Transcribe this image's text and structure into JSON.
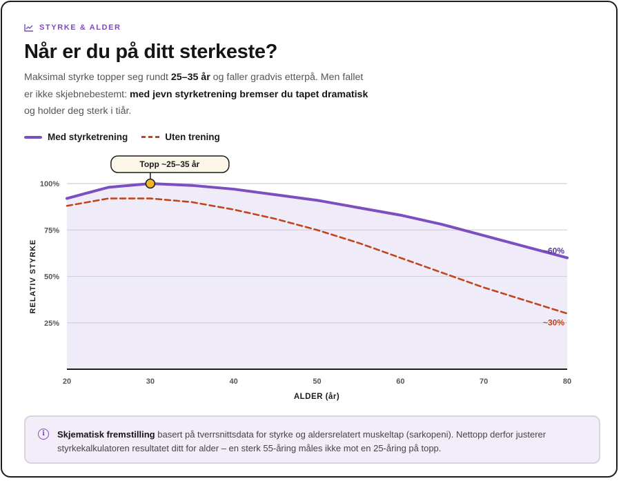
{
  "eyebrow": "STYRKE & ALDER",
  "title": "Når er du på ditt sterkeste?",
  "lede": {
    "p1": "Maksimal styrke topper seg rundt ",
    "b1": "25–35 år",
    "p2": " og faller gradvis etterpå. Men fallet er ikke skjebnebestemt: ",
    "b2": "med jevn styrketrening bremser du tapet dramatisk",
    "p3": " og holder deg sterk i tiår."
  },
  "legend": {
    "trained": "Med styrketrening",
    "untrained": "Uten trening"
  },
  "note": {
    "bold": "Skjematisk fremstilling",
    "text": " basert på tverrsnittsdata for styrke og aldersrelatert muskeltap (sarkopeni). Nettopp derfor justerer styrkekalkulatoren resultatet ditt for alder – en sterk 55-åring måles ikke mot en 25-åring på topp."
  },
  "colors": {
    "trained": "#7b4fc0",
    "untrained": "#c1451b",
    "fill": "#f0ebf8",
    "peak": "#f0b52a"
  },
  "chart_data": {
    "type": "line",
    "xlabel": "ALDER (år)",
    "ylabel": "RELATIV STYRKE",
    "xlim": [
      20,
      80
    ],
    "ylim": [
      0,
      100
    ],
    "x_ticks": [
      20,
      30,
      40,
      50,
      60,
      70,
      80
    ],
    "y_ticks": [
      {
        "value": 25,
        "label": "25%"
      },
      {
        "value": 50,
        "label": "50%"
      },
      {
        "value": 75,
        "label": "75%"
      },
      {
        "value": 100,
        "label": "100%"
      }
    ],
    "grid": true,
    "series": [
      {
        "name": "Med styrketrening",
        "style": "solid",
        "area": true,
        "x": [
          20,
          25,
          30,
          35,
          40,
          45,
          50,
          55,
          60,
          65,
          70,
          75,
          80
        ],
        "y": [
          92,
          98,
          100,
          99,
          97,
          94,
          91,
          87,
          83,
          78,
          72,
          66,
          60
        ]
      },
      {
        "name": "Uten trening",
        "style": "dashed",
        "x": [
          20,
          25,
          30,
          35,
          40,
          45,
          50,
          55,
          60,
          65,
          70,
          75,
          80
        ],
        "y": [
          88,
          92,
          92,
          90,
          86,
          81,
          75,
          68,
          60,
          52,
          44,
          37,
          30
        ]
      }
    ],
    "annotations": [
      {
        "text": "Topp ~25–35 år",
        "x": 30,
        "y": 100,
        "type": "callout"
      },
      {
        "text": "~60%",
        "x": 80,
        "y": 60,
        "series": 0
      },
      {
        "text": "~30%",
        "x": 80,
        "y": 30,
        "series": 1
      }
    ]
  }
}
